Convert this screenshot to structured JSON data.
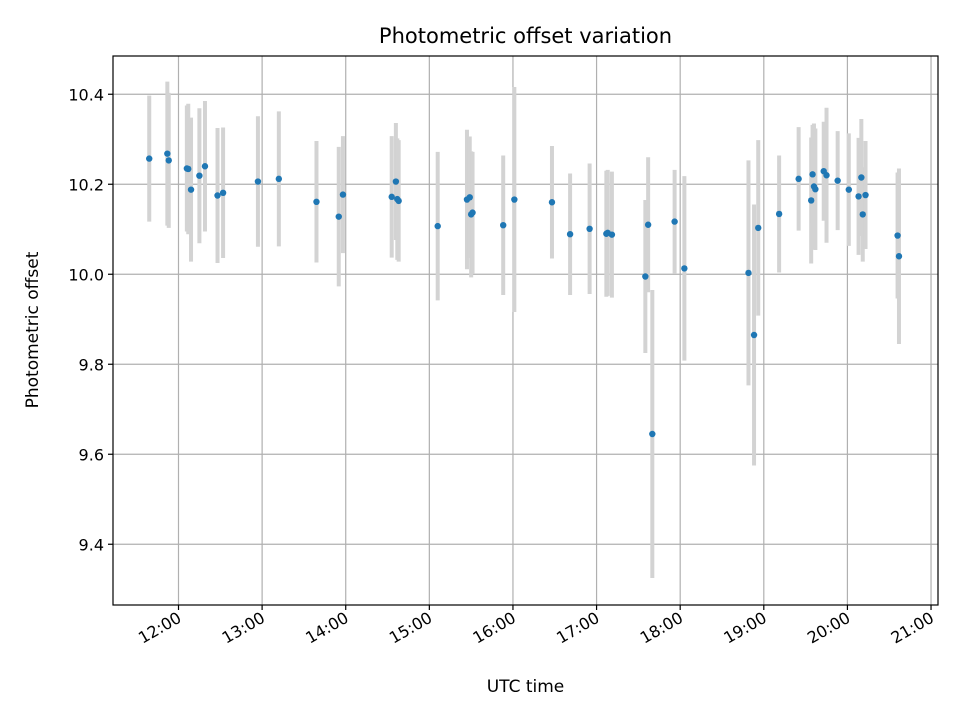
{
  "chart_data": {
    "type": "scatter",
    "title": "Photometric offset variation",
    "xlabel": "UTC time",
    "ylabel": "Photometric offset",
    "x_tick_labels": [
      "12:00",
      "13:00",
      "14:00",
      "15:00",
      "16:00",
      "17:00",
      "18:00",
      "19:00",
      "20:00",
      "21:00"
    ],
    "y_tick_labels": [
      "9.4",
      "9.6",
      "9.8",
      "10.0",
      "10.2",
      "10.4"
    ],
    "xlim": [
      "11:13",
      "21:05"
    ],
    "ylim": [
      9.265,
      10.485
    ],
    "grid": true,
    "colors": {
      "points": "#1f77b4",
      "errorbars": "#d3d3d3",
      "grid": "#b0b0b0"
    },
    "series": [
      {
        "x": [
          "11:39",
          "11:52",
          "11:53",
          "12:06",
          "12:07",
          "12:09",
          "12:15",
          "12:19",
          "12:28",
          "12:32",
          "12:57",
          "13:12",
          "13:39",
          "13:55",
          "13:58",
          "14:33",
          "14:36",
          "14:37",
          "14:38",
          "15:06",
          "15:27",
          "15:29",
          "15:30",
          "15:31",
          "15:53",
          "16:01",
          "16:28",
          "16:41",
          "16:55",
          "17:07",
          "17:08",
          "17:11",
          "17:35",
          "17:37",
          "17:40",
          "17:56",
          "18:03",
          "18:49",
          "18:53",
          "18:56",
          "19:11",
          "19:25",
          "19:34",
          "19:35",
          "19:36",
          "19:37",
          "19:43",
          "19:45",
          "19:53",
          "20:01",
          "20:08",
          "20:10",
          "20:11",
          "20:13",
          "20:36",
          "20:37"
        ],
        "y": [
          10.257,
          10.268,
          10.253,
          10.235,
          10.234,
          10.188,
          10.219,
          10.24,
          10.175,
          10.181,
          10.206,
          10.212,
          10.161,
          10.128,
          10.177,
          10.172,
          10.206,
          10.167,
          10.163,
          10.107,
          10.166,
          10.171,
          10.133,
          10.137,
          10.109,
          10.166,
          10.16,
          10.089,
          10.101,
          10.09,
          10.092,
          10.088,
          9.995,
          10.11,
          9.645,
          10.117,
          10.013,
          10.003,
          9.865,
          10.103,
          10.134,
          10.212,
          10.164,
          10.222,
          10.195,
          10.189,
          10.229,
          10.22,
          10.208,
          10.188,
          10.173,
          10.215,
          10.133,
          10.176,
          10.086,
          10.04
        ],
        "yerr": [
          0.14,
          0.16,
          0.15,
          0.14,
          0.145,
          0.16,
          0.15,
          0.145,
          0.15,
          0.145,
          0.145,
          0.15,
          0.135,
          0.155,
          0.13,
          0.135,
          0.13,
          0.135,
          0.135,
          0.165,
          0.155,
          0.135,
          0.14,
          0.135,
          0.155,
          0.25,
          0.125,
          0.135,
          0.145,
          0.14,
          0.14,
          0.14,
          0.17,
          0.15,
          0.32,
          0.115,
          0.205,
          0.25,
          0.29,
          0.195,
          0.13,
          0.115,
          0.14,
          0.11,
          0.14,
          0.135,
          0.11,
          0.15,
          0.11,
          0.125,
          0.13,
          0.13,
          0.105,
          0.12,
          0.14,
          0.195
        ]
      }
    ]
  }
}
